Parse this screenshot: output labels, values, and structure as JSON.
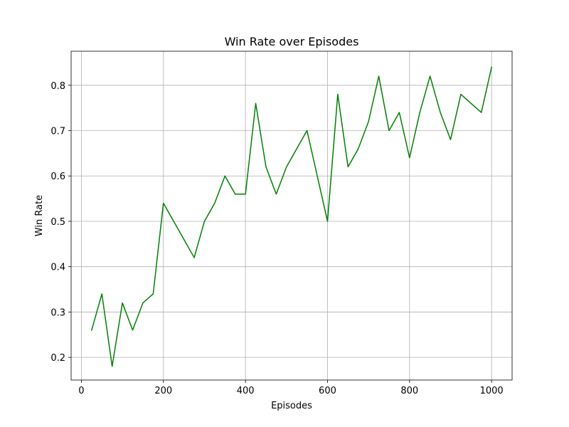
{
  "chart_data": {
    "type": "line",
    "title": "Win Rate over Episodes",
    "xlabel": "Episodes",
    "ylabel": "Win Rate",
    "xlim": [
      -25,
      1050
    ],
    "ylim": [
      0.15,
      0.875
    ],
    "xticks": [
      0,
      200,
      400,
      600,
      800,
      1000
    ],
    "yticks": [
      0.2,
      0.3,
      0.4,
      0.5,
      0.6,
      0.7,
      0.8
    ],
    "xtick_labels": [
      "0",
      "200",
      "400",
      "600",
      "800",
      "1000"
    ],
    "ytick_labels": [
      "0.2",
      "0.3",
      "0.4",
      "0.5",
      "0.6",
      "0.7",
      "0.8"
    ],
    "grid": true,
    "series": [
      {
        "color": "#008000",
        "x": [
          25,
          50,
          75,
          100,
          125,
          150,
          175,
          200,
          225,
          250,
          275,
          300,
          325,
          350,
          375,
          400,
          425,
          450,
          475,
          500,
          525,
          550,
          575,
          600,
          625,
          650,
          675,
          700,
          725,
          750,
          775,
          800,
          825,
          850,
          875,
          900,
          925,
          950,
          975,
          1000
        ],
        "y": [
          0.26,
          0.34,
          0.18,
          0.32,
          0.26,
          0.32,
          0.34,
          0.54,
          0.5,
          0.46,
          0.42,
          0.5,
          0.54,
          0.6,
          0.56,
          0.56,
          0.76,
          0.62,
          0.56,
          0.62,
          0.66,
          0.7,
          0.6,
          0.5,
          0.78,
          0.62,
          0.66,
          0.72,
          0.82,
          0.7,
          0.74,
          0.64,
          0.74,
          0.82,
          0.74,
          0.68,
          0.78,
          0.76,
          0.74,
          0.84
        ]
      }
    ]
  }
}
